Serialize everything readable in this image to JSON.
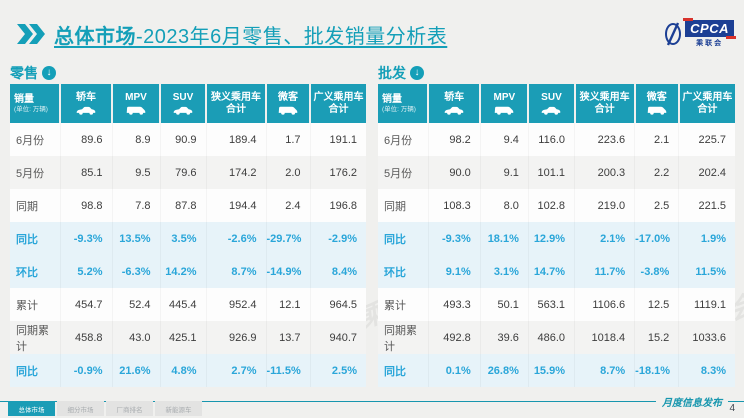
{
  "header": {
    "title_bold": "总体市场",
    "title_rest": "-2023年6月零售、批发销量分析表",
    "logo": {
      "text": "CPCA",
      "sub": "乘联会"
    }
  },
  "colors": {
    "accent_teal": "#1b9db6",
    "title_teal": "#149fb8",
    "pct_blue": "#2aa6d9",
    "pct_row_bg": "#e7f3f9",
    "logo_navy": "#1c3f94",
    "logo_red": "#d8322b"
  },
  "tables": [
    {
      "section_label": "零售",
      "unit_label": "销量",
      "unit_sub": "(单位: 万辆)",
      "columns": [
        "轿车",
        "MPV",
        "SUV",
        "狭义乘用车 合计",
        "微客",
        "广义乘用车 合计"
      ],
      "rows": [
        {
          "label": "6月份",
          "type": "normal",
          "values": [
            "89.6",
            "8.9",
            "90.9",
            "189.4",
            "1.7",
            "191.1"
          ]
        },
        {
          "label": "5月份",
          "type": "alt",
          "values": [
            "85.1",
            "9.5",
            "79.6",
            "174.2",
            "2.0",
            "176.2"
          ]
        },
        {
          "label": "同期",
          "type": "normal",
          "values": [
            "98.8",
            "7.8",
            "87.8",
            "194.4",
            "2.4",
            "196.8"
          ]
        },
        {
          "label": "同比",
          "type": "pct",
          "values": [
            "-9.3%",
            "13.5%",
            "3.5%",
            "-2.6%",
            "-29.7%",
            "-2.9%"
          ]
        },
        {
          "label": "环比",
          "type": "pct",
          "values": [
            "5.2%",
            "-6.3%",
            "14.2%",
            "8.7%",
            "-14.9%",
            "8.4%"
          ]
        },
        {
          "label": "累计",
          "type": "normal",
          "values": [
            "454.7",
            "52.4",
            "445.4",
            "952.4",
            "12.1",
            "964.5"
          ]
        },
        {
          "label": "同期累计",
          "type": "alt",
          "values": [
            "458.8",
            "43.0",
            "425.1",
            "926.9",
            "13.7",
            "940.7"
          ]
        },
        {
          "label": "同比",
          "type": "pct",
          "values": [
            "-0.9%",
            "21.6%",
            "4.8%",
            "2.7%",
            "-11.5%",
            "2.5%"
          ]
        }
      ]
    },
    {
      "section_label": "批发",
      "unit_label": "销量",
      "unit_sub": "(单位: 万辆)",
      "columns": [
        "轿车",
        "MPV",
        "SUV",
        "狭义乘用车 合计",
        "微客",
        "广义乘用车 合计"
      ],
      "rows": [
        {
          "label": "6月份",
          "type": "normal",
          "values": [
            "98.2",
            "9.4",
            "116.0",
            "223.6",
            "2.1",
            "225.7"
          ]
        },
        {
          "label": "5月份",
          "type": "alt",
          "values": [
            "90.0",
            "9.1",
            "101.1",
            "200.3",
            "2.2",
            "202.4"
          ]
        },
        {
          "label": "同期",
          "type": "normal",
          "values": [
            "108.3",
            "8.0",
            "102.8",
            "219.0",
            "2.5",
            "221.5"
          ]
        },
        {
          "label": "同比",
          "type": "pct",
          "values": [
            "-9.3%",
            "18.1%",
            "12.9%",
            "2.1%",
            "-17.0%",
            "1.9%"
          ]
        },
        {
          "label": "环比",
          "type": "pct",
          "values": [
            "9.1%",
            "3.1%",
            "14.7%",
            "11.7%",
            "-3.8%",
            "11.5%"
          ]
        },
        {
          "label": "累计",
          "type": "normal",
          "values": [
            "493.3",
            "50.1",
            "563.1",
            "1106.6",
            "12.5",
            "1119.1"
          ]
        },
        {
          "label": "同期累计",
          "type": "alt",
          "values": [
            "492.8",
            "39.6",
            "486.0",
            "1018.4",
            "15.2",
            "1033.6"
          ]
        },
        {
          "label": "同比",
          "type": "pct",
          "values": [
            "0.1%",
            "26.8%",
            "15.9%",
            "8.7%",
            "-18.1%",
            "8.3%"
          ]
        }
      ]
    }
  ],
  "watermark": "CPCA 乘联会",
  "footer": {
    "tabs": [
      {
        "label": "总体市场",
        "active": true
      },
      {
        "label": "细分市场",
        "active": false
      },
      {
        "label": "厂商排名",
        "active": false
      },
      {
        "label": "新能源车",
        "active": false
      }
    ],
    "release_label": "月度信息发布",
    "page_number": "4"
  }
}
